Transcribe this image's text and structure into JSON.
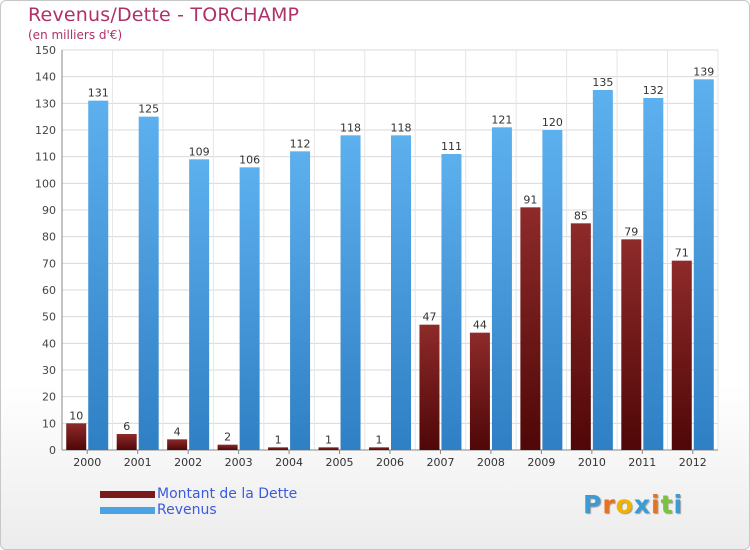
{
  "header": {
    "title": "Revenus/Dette - TORCHAMP",
    "subtitle": "(en milliers d'€)"
  },
  "chart_data": {
    "type": "bar",
    "title": "Revenus/Dette - TORCHAMP",
    "subtitle": "(en milliers d'€)",
    "xlabel": "",
    "ylabel": "",
    "categories": [
      "2000",
      "2001",
      "2002",
      "2003",
      "2004",
      "2005",
      "2006",
      "2007",
      "2008",
      "2009",
      "2010",
      "2011",
      "2012"
    ],
    "series": [
      {
        "name": "Montant de la Dette",
        "color": "#7a1a1a",
        "values": [
          10,
          6,
          4,
          2,
          1,
          1,
          1,
          47,
          44,
          91,
          85,
          79,
          71
        ]
      },
      {
        "name": "Revenus",
        "color": "#4ba3e3",
        "values": [
          131,
          125,
          109,
          106,
          112,
          118,
          118,
          111,
          121,
          120,
          135,
          132,
          139
        ]
      }
    ],
    "ylim": [
      0,
      150
    ],
    "yticks": [
      0,
      10,
      20,
      30,
      40,
      50,
      60,
      70,
      80,
      90,
      100,
      110,
      120,
      130,
      140,
      150
    ],
    "grid": true,
    "legend_position": "bottom-left"
  },
  "legend": {
    "items": [
      {
        "label": "Montant de la Dette",
        "color": "#7a1a1a",
        "text_color": "#3b5bdb"
      },
      {
        "label": "Revenus",
        "color": "#4ba3e3",
        "text_color": "#3b5bdb"
      }
    ]
  },
  "logo": {
    "letters": [
      "P",
      "r",
      "o",
      "x",
      "i",
      "t",
      "i"
    ],
    "colors": [
      "#3a9bd5",
      "#e8731f",
      "#f0b400",
      "#3a9bd5",
      "#e8731f",
      "#7cc142",
      "#3a9bd5"
    ]
  }
}
